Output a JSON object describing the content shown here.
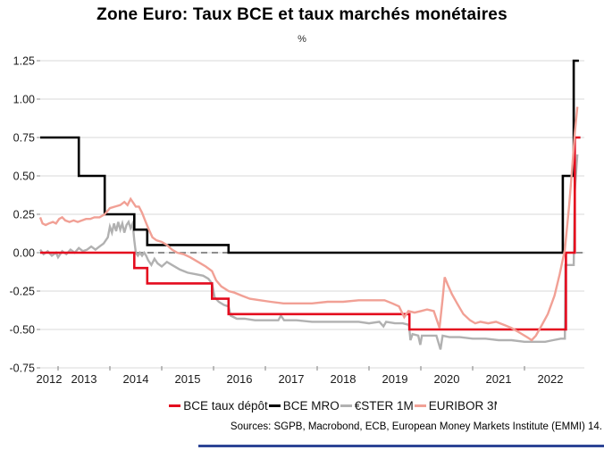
{
  "header": {
    "title": "Zone Euro: Taux BCE et taux marchés monétaires",
    "subtitle": "%"
  },
  "legend": {
    "items": [
      {
        "label": "BCE taux dépôt",
        "color": "#e40b1e"
      },
      {
        "label": "BCE MRO",
        "color": "#000000"
      },
      {
        "label": "€STER 1M",
        "color": "#b1b1b1"
      },
      {
        "label": "EURIBOR 3M",
        "color": "#f1a095"
      }
    ]
  },
  "footer": {
    "sources": "Sources: SGPB, Macrobond, ECB, European Money Markets Institute (EMMI) 14.",
    "accent_bar_color": "#2d4596"
  },
  "chart_data": {
    "type": "line",
    "title": "Zone Euro: Taux BCE et taux marchés monétaires",
    "ylabel": "%",
    "xlabel": "",
    "ylim": [
      -0.75,
      1.25
    ],
    "xlim": [
      2012.655,
      2023.155
    ],
    "yticks": [
      1.25,
      1.0,
      0.75,
      0.5,
      0.25,
      0.0,
      -0.25,
      -0.5,
      -0.75
    ],
    "xtick_boundary_years": [
      2013,
      2014,
      2015,
      2016,
      2017,
      2018,
      2019,
      2020,
      2021,
      2022
    ],
    "xtick_labels": [
      "2012",
      "2013",
      "2014",
      "2015",
      "2016",
      "2017",
      "2018",
      "2019",
      "2020",
      "2021",
      "2022"
    ],
    "grid": "horizontal",
    "zero_line": "dashed-gray",
    "legend_position": "bottom",
    "colors": {
      "grid": "#d9d9d9",
      "zero_dash": "#7f7f7f",
      "axis_text": "#1a1a1a",
      "tick": "#8c8c8c"
    },
    "series": [
      {
        "name": "BCE taux dépôt",
        "color": "#e40b1e",
        "width": 2.6,
        "z": 3,
        "points": [
          [
            2012.655,
            0.0
          ],
          [
            2014.47,
            0.0
          ],
          [
            2014.47,
            -0.1
          ],
          [
            2014.72,
            -0.1
          ],
          [
            2014.72,
            -0.2
          ],
          [
            2015.97,
            -0.2
          ],
          [
            2015.97,
            -0.3
          ],
          [
            2016.29,
            -0.3
          ],
          [
            2016.29,
            -0.4
          ],
          [
            2019.78,
            -0.4
          ],
          [
            2019.78,
            -0.5
          ],
          [
            2022.8,
            -0.5
          ],
          [
            2022.8,
            0.0
          ],
          [
            2022.97,
            0.0
          ],
          [
            2022.97,
            0.75
          ],
          [
            2023.08,
            0.75
          ]
        ]
      },
      {
        "name": "BCE MRO",
        "color": "#000000",
        "width": 2.6,
        "z": 2,
        "points": [
          [
            2012.655,
            0.75
          ],
          [
            2013.4,
            0.75
          ],
          [
            2013.4,
            0.5
          ],
          [
            2013.9,
            0.5
          ],
          [
            2013.9,
            0.25
          ],
          [
            2014.47,
            0.25
          ],
          [
            2014.47,
            0.15
          ],
          [
            2014.72,
            0.15
          ],
          [
            2014.72,
            0.05
          ],
          [
            2016.29,
            0.05
          ],
          [
            2016.29,
            0.0
          ],
          [
            2022.74,
            0.0
          ],
          [
            2022.74,
            0.5
          ],
          [
            2022.95,
            0.5
          ],
          [
            2022.95,
            1.25
          ],
          [
            2023.05,
            1.25
          ]
        ]
      },
      {
        "name": "€STER 1M",
        "color": "#b1b1b1",
        "width": 2.4,
        "z": 1,
        "points": [
          [
            2012.655,
            0.02
          ],
          [
            2012.72,
            -0.01
          ],
          [
            2012.8,
            0.01
          ],
          [
            2012.88,
            -0.02
          ],
          [
            2012.96,
            0.0
          ],
          [
            2013.0,
            -0.03
          ],
          [
            2013.08,
            0.01
          ],
          [
            2013.16,
            -0.01
          ],
          [
            2013.24,
            0.02
          ],
          [
            2013.32,
            0.0
          ],
          [
            2013.4,
            0.03
          ],
          [
            2013.48,
            0.01
          ],
          [
            2013.56,
            0.02
          ],
          [
            2013.64,
            0.04
          ],
          [
            2013.72,
            0.02
          ],
          [
            2013.8,
            0.04
          ],
          [
            2013.88,
            0.06
          ],
          [
            2013.96,
            0.1
          ],
          [
            2014.0,
            0.17
          ],
          [
            2014.04,
            0.13
          ],
          [
            2014.08,
            0.19
          ],
          [
            2014.12,
            0.14
          ],
          [
            2014.16,
            0.2
          ],
          [
            2014.2,
            0.15
          ],
          [
            2014.24,
            0.19
          ],
          [
            2014.28,
            0.13
          ],
          [
            2014.32,
            0.18
          ],
          [
            2014.36,
            0.2
          ],
          [
            2014.4,
            0.16
          ],
          [
            2014.44,
            0.19
          ],
          [
            2014.47,
            0.08
          ],
          [
            2014.5,
            0.0
          ],
          [
            2014.54,
            -0.02
          ],
          [
            2014.58,
            0.0
          ],
          [
            2014.62,
            -0.02
          ],
          [
            2014.66,
            0.0
          ],
          [
            2014.7,
            -0.02
          ],
          [
            2014.74,
            -0.05
          ],
          [
            2014.8,
            -0.08
          ],
          [
            2014.86,
            -0.04
          ],
          [
            2014.92,
            -0.07
          ],
          [
            2015.0,
            -0.09
          ],
          [
            2015.1,
            -0.06
          ],
          [
            2015.2,
            -0.08
          ],
          [
            2015.35,
            -0.11
          ],
          [
            2015.5,
            -0.13
          ],
          [
            2015.65,
            -0.14
          ],
          [
            2015.8,
            -0.15
          ],
          [
            2015.9,
            -0.17
          ],
          [
            2015.97,
            -0.2
          ],
          [
            2016.02,
            -0.29
          ],
          [
            2016.1,
            -0.32
          ],
          [
            2016.2,
            -0.34
          ],
          [
            2016.29,
            -0.35
          ],
          [
            2016.33,
            -0.41
          ],
          [
            2016.45,
            -0.43
          ],
          [
            2016.6,
            -0.43
          ],
          [
            2016.8,
            -0.44
          ],
          [
            2017.0,
            -0.44
          ],
          [
            2017.25,
            -0.44
          ],
          [
            2017.3,
            -0.41
          ],
          [
            2017.36,
            -0.44
          ],
          [
            2017.6,
            -0.44
          ],
          [
            2017.9,
            -0.45
          ],
          [
            2018.2,
            -0.45
          ],
          [
            2018.5,
            -0.45
          ],
          [
            2018.8,
            -0.45
          ],
          [
            2019.0,
            -0.46
          ],
          [
            2019.2,
            -0.45
          ],
          [
            2019.28,
            -0.48
          ],
          [
            2019.33,
            -0.45
          ],
          [
            2019.5,
            -0.46
          ],
          [
            2019.65,
            -0.46
          ],
          [
            2019.77,
            -0.47
          ],
          [
            2019.8,
            -0.57
          ],
          [
            2019.84,
            -0.53
          ],
          [
            2019.95,
            -0.54
          ],
          [
            2019.99,
            -0.6
          ],
          [
            2020.02,
            -0.54
          ],
          [
            2020.15,
            -0.54
          ],
          [
            2020.3,
            -0.54
          ],
          [
            2020.38,
            -0.63
          ],
          [
            2020.42,
            -0.54
          ],
          [
            2020.55,
            -0.55
          ],
          [
            2020.75,
            -0.55
          ],
          [
            2021.0,
            -0.56
          ],
          [
            2021.25,
            -0.56
          ],
          [
            2021.5,
            -0.57
          ],
          [
            2021.75,
            -0.57
          ],
          [
            2022.0,
            -0.58
          ],
          [
            2022.2,
            -0.58
          ],
          [
            2022.4,
            -0.58
          ],
          [
            2022.55,
            -0.57
          ],
          [
            2022.7,
            -0.56
          ],
          [
            2022.78,
            -0.56
          ],
          [
            2022.79,
            -0.08
          ],
          [
            2022.95,
            -0.08
          ],
          [
            2022.97,
            0.4
          ],
          [
            2023.02,
            0.64
          ]
        ]
      },
      {
        "name": "EURIBOR 3M",
        "color": "#f1a095",
        "width": 2.4,
        "z": 4,
        "points": [
          [
            2012.655,
            0.23
          ],
          [
            2012.7,
            0.19
          ],
          [
            2012.76,
            0.18
          ],
          [
            2012.82,
            0.19
          ],
          [
            2012.9,
            0.2
          ],
          [
            2012.96,
            0.19
          ],
          [
            2013.02,
            0.22
          ],
          [
            2013.08,
            0.23
          ],
          [
            2013.14,
            0.21
          ],
          [
            2013.22,
            0.2
          ],
          [
            2013.3,
            0.21
          ],
          [
            2013.38,
            0.2
          ],
          [
            2013.46,
            0.21
          ],
          [
            2013.54,
            0.22
          ],
          [
            2013.62,
            0.22
          ],
          [
            2013.7,
            0.23
          ],
          [
            2013.8,
            0.23
          ],
          [
            2013.9,
            0.25
          ],
          [
            2014.0,
            0.29
          ],
          [
            2014.1,
            0.3
          ],
          [
            2014.2,
            0.31
          ],
          [
            2014.28,
            0.33
          ],
          [
            2014.34,
            0.31
          ],
          [
            2014.4,
            0.35
          ],
          [
            2014.44,
            0.33
          ],
          [
            2014.5,
            0.3
          ],
          [
            2014.56,
            0.3
          ],
          [
            2014.62,
            0.26
          ],
          [
            2014.68,
            0.21
          ],
          [
            2014.74,
            0.16
          ],
          [
            2014.82,
            0.1
          ],
          [
            2014.9,
            0.08
          ],
          [
            2015.0,
            0.07
          ],
          [
            2015.1,
            0.05
          ],
          [
            2015.2,
            0.02
          ],
          [
            2015.3,
            0.0
          ],
          [
            2015.42,
            -0.01
          ],
          [
            2015.55,
            -0.03
          ],
          [
            2015.7,
            -0.06
          ],
          [
            2015.85,
            -0.09
          ],
          [
            2015.97,
            -0.12
          ],
          [
            2016.05,
            -0.18
          ],
          [
            2016.15,
            -0.22
          ],
          [
            2016.29,
            -0.25
          ],
          [
            2016.4,
            -0.26
          ],
          [
            2016.55,
            -0.28
          ],
          [
            2016.7,
            -0.3
          ],
          [
            2016.9,
            -0.31
          ],
          [
            2017.1,
            -0.32
          ],
          [
            2017.35,
            -0.33
          ],
          [
            2017.6,
            -0.33
          ],
          [
            2017.9,
            -0.33
          ],
          [
            2018.2,
            -0.32
          ],
          [
            2018.5,
            -0.32
          ],
          [
            2018.8,
            -0.31
          ],
          [
            2019.05,
            -0.31
          ],
          [
            2019.3,
            -0.31
          ],
          [
            2019.45,
            -0.33
          ],
          [
            2019.58,
            -0.35
          ],
          [
            2019.68,
            -0.42
          ],
          [
            2019.76,
            -0.38
          ],
          [
            2019.88,
            -0.39
          ],
          [
            2020.0,
            -0.38
          ],
          [
            2020.12,
            -0.37
          ],
          [
            2020.25,
            -0.38
          ],
          [
            2020.36,
            -0.49
          ],
          [
            2020.42,
            -0.3
          ],
          [
            2020.46,
            -0.16
          ],
          [
            2020.52,
            -0.21
          ],
          [
            2020.6,
            -0.27
          ],
          [
            2020.7,
            -0.33
          ],
          [
            2020.82,
            -0.4
          ],
          [
            2020.95,
            -0.44
          ],
          [
            2021.05,
            -0.46
          ],
          [
            2021.15,
            -0.45
          ],
          [
            2021.3,
            -0.46
          ],
          [
            2021.45,
            -0.45
          ],
          [
            2021.6,
            -0.47
          ],
          [
            2021.75,
            -0.49
          ],
          [
            2021.9,
            -0.52
          ],
          [
            2022.05,
            -0.55
          ],
          [
            2022.14,
            -0.57
          ],
          [
            2022.22,
            -0.54
          ],
          [
            2022.32,
            -0.48
          ],
          [
            2022.45,
            -0.4
          ],
          [
            2022.58,
            -0.28
          ],
          [
            2022.68,
            -0.14
          ],
          [
            2022.78,
            0.02
          ],
          [
            2022.86,
            0.3
          ],
          [
            2022.92,
            0.55
          ],
          [
            2022.97,
            0.78
          ],
          [
            2023.02,
            0.95
          ]
        ]
      }
    ]
  }
}
